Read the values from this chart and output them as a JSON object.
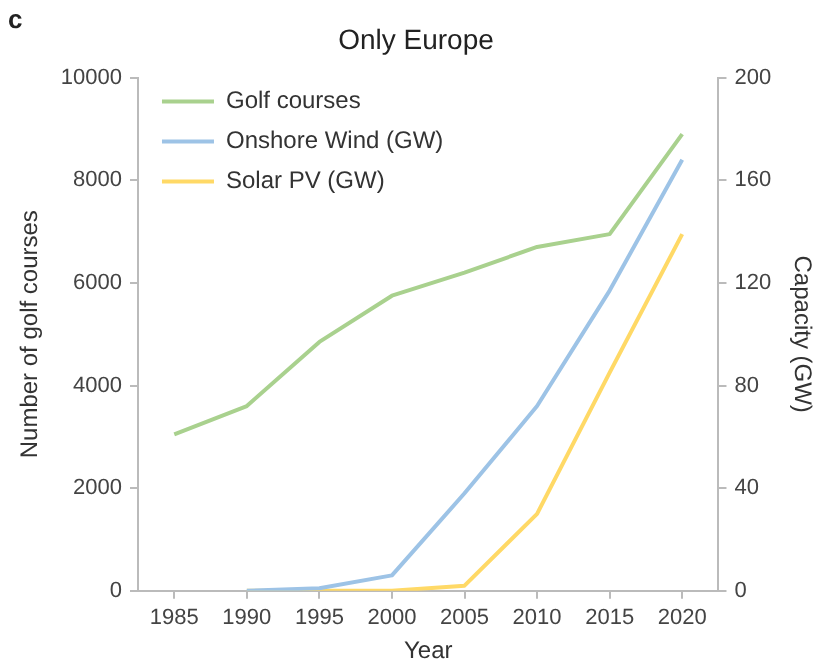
{
  "chart_data": {
    "type": "line",
    "title": "Only Europe",
    "xlabel": "Year",
    "ylabel": "Number of golf courses",
    "y2label": "Capacity (GW)",
    "annotations": [
      "c"
    ],
    "categories": [
      "1985",
      "1990",
      "1995",
      "2000",
      "2005",
      "2010",
      "2015",
      "2020"
    ],
    "series": [
      {
        "name": "Golf courses",
        "color": "#a9d18e",
        "values": [
          3050,
          3600,
          4850,
          5750,
          6200,
          6700,
          6950,
          8900
        ]
      },
      {
        "name": "Onshore Wind (GW)",
        "color": "#9dc3e6",
        "axis": "y2",
        "values": [
          null,
          0,
          1,
          6,
          38,
          72,
          117,
          168
        ]
      },
      {
        "name": "Solar PV (GW)",
        "color": "#ffd966",
        "axis": "y2",
        "values": [
          null,
          0,
          0,
          0,
          2,
          30,
          85,
          139
        ]
      }
    ],
    "ylim": [
      0,
      10000
    ],
    "yticks": [
      0,
      2000,
      4000,
      6000,
      8000,
      10000
    ],
    "y2lim": [
      0,
      200
    ],
    "y2ticks": [
      0,
      40,
      80,
      120,
      160,
      200
    ],
    "grid": false,
    "legend": "top left",
    "marker": "none",
    "line_style": "solid"
  }
}
